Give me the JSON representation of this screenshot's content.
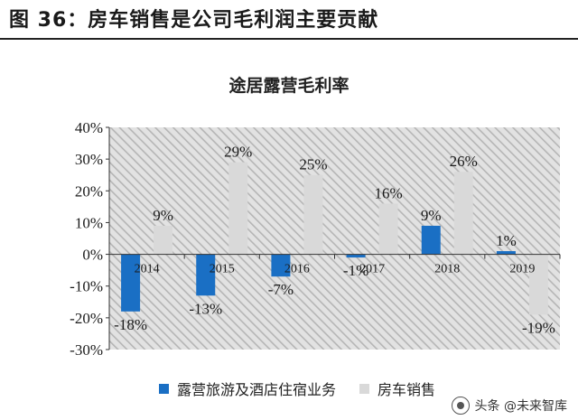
{
  "figure_title": "图 36：房车销售是公司毛利润主要贡献",
  "watermark": "头条 @未来智库",
  "colors": {
    "camp_bar": "#1a6fc4",
    "rv_bar": "#d9d9d9",
    "hatch_bg": "#e2e2e2",
    "hatch_line": "#b5b5b5"
  },
  "chart_data": {
    "type": "bar",
    "title": "途居露营毛利率",
    "categories": [
      "2014",
      "2015",
      "2016",
      "2017",
      "2018",
      "2019"
    ],
    "series": [
      {
        "name": "露营旅游及酒店住宿业务",
        "values": [
          -18,
          -13,
          -7,
          -1,
          9,
          1
        ],
        "labels": [
          "-18%",
          "-13%",
          "-7%",
          "-1%",
          "9%",
          "1%"
        ]
      },
      {
        "name": "房车销售",
        "values": [
          9,
          29,
          25,
          16,
          26,
          -19
        ],
        "labels": [
          "9%",
          "29%",
          "25%",
          "16%",
          "26%",
          "-19%"
        ]
      }
    ],
    "ylim": [
      -30,
      40
    ],
    "yticks": [
      40,
      30,
      20,
      10,
      0,
      -10,
      -20,
      -30
    ],
    "ytick_labels": [
      "40%",
      "30%",
      "20%",
      "10%",
      "0%",
      "-10%",
      "-20%",
      "-30%"
    ],
    "xlabel": "",
    "ylabel": "",
    "grid": false,
    "legend": "bottom"
  }
}
